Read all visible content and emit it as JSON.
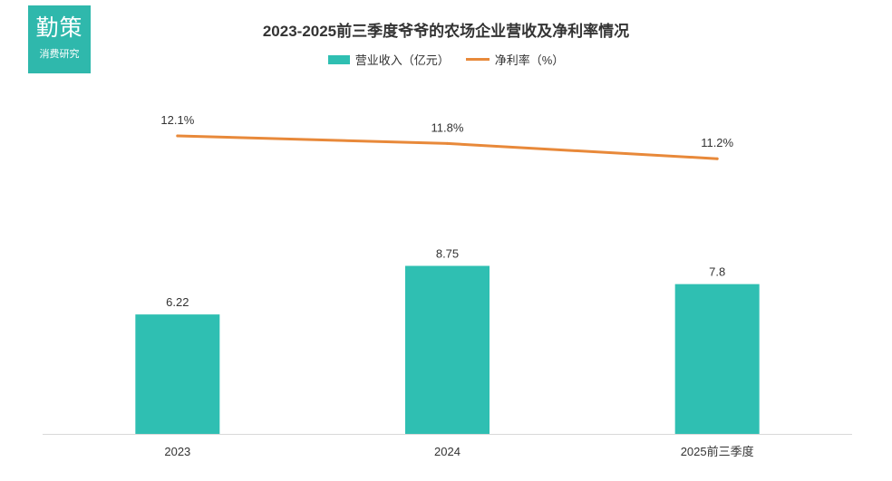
{
  "logo": {
    "main": "勤策",
    "sub": "消费研究"
  },
  "chart_data": {
    "type": "bar",
    "title": "2023-2025前三季度爷爷的农场企业营收及净利率情况",
    "categories": [
      "2023",
      "2024",
      "2025前三季度"
    ],
    "series": [
      {
        "name": "营业收入（亿元）",
        "kind": "bar",
        "values": [
          6.22,
          8.75,
          7.8
        ],
        "labels": [
          "6.22",
          "8.75",
          "7.8"
        ]
      },
      {
        "name": "净利率（%）",
        "kind": "line",
        "values": [
          12.1,
          11.8,
          11.2
        ],
        "labels": [
          "12.1%",
          "11.8%",
          "11.2%"
        ]
      }
    ],
    "xlabel": "",
    "ylabel": "",
    "grid": false,
    "legend": "top-center"
  },
  "colors": {
    "bar": "#2fbfb2",
    "line": "#e8893a",
    "logo_bg": "#2fb8ac",
    "axis": "#d9d9d9",
    "text": "#333333"
  }
}
